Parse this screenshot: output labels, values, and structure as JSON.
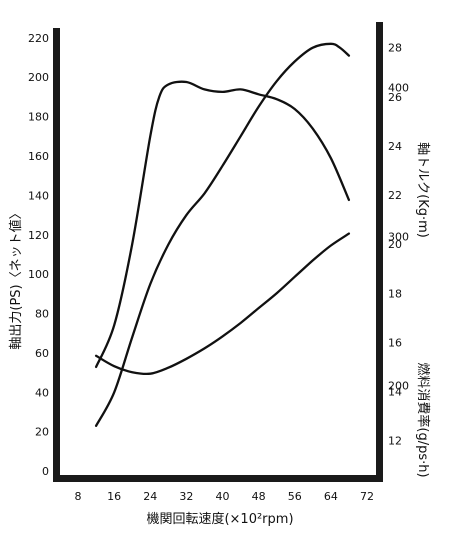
{
  "chart_data": {
    "type": "line",
    "x_axis": {
      "label": "機関回転速度(×10²rpm)",
      "ticks": [
        8,
        16,
        24,
        32,
        40,
        48,
        56,
        64,
        72
      ],
      "range": [
        4,
        74
      ]
    },
    "y_axis_left": {
      "label": "軸出力(PS)〈ネット値〉",
      "ticks": [
        0,
        20,
        40,
        60,
        80,
        100,
        120,
        140,
        160,
        180,
        200,
        220
      ],
      "range": [
        -2,
        225
      ]
    },
    "y_axis_right_torque": {
      "label": "軸トルク(Kg·m)",
      "ticks": [
        12,
        14,
        16,
        18,
        20,
        22,
        24,
        26,
        28
      ],
      "range": [
        10.6,
        28.8
      ]
    },
    "y_axis_right_fuel": {
      "label": "燃料消費率(g/ps·h)",
      "ticks": [
        200,
        300,
        400
      ],
      "range": [
        140,
        440
      ]
    },
    "series": [
      {
        "axis": "left",
        "x": [
          12,
          16,
          20,
          24,
          28,
          32,
          36,
          40,
          44,
          48,
          52,
          56,
          60,
          64,
          66,
          68
        ],
        "y": [
          23,
          40,
          68,
          95,
          115,
          130,
          141,
          155,
          170,
          185,
          198,
          208,
          215,
          217,
          215,
          211
        ]
      },
      {
        "axis": "torque",
        "x": [
          12,
          16,
          20,
          24,
          26,
          28,
          32,
          36,
          40,
          44,
          48,
          52,
          56,
          60,
          64,
          68
        ],
        "y": [
          15.0,
          16.7,
          20.0,
          24.4,
          26.0,
          26.5,
          26.6,
          26.3,
          26.2,
          26.3,
          26.1,
          25.9,
          25.5,
          24.7,
          23.5,
          21.8
        ]
      },
      {
        "axis": "fuel",
        "x": [
          12,
          16,
          20,
          24,
          28,
          32,
          36,
          40,
          44,
          48,
          52,
          56,
          60,
          64,
          68
        ],
        "y": [
          220,
          213,
          209,
          208,
          212,
          218,
          225,
          233,
          242,
          252,
          262,
          273,
          284,
          294,
          302
        ]
      }
    ]
  }
}
